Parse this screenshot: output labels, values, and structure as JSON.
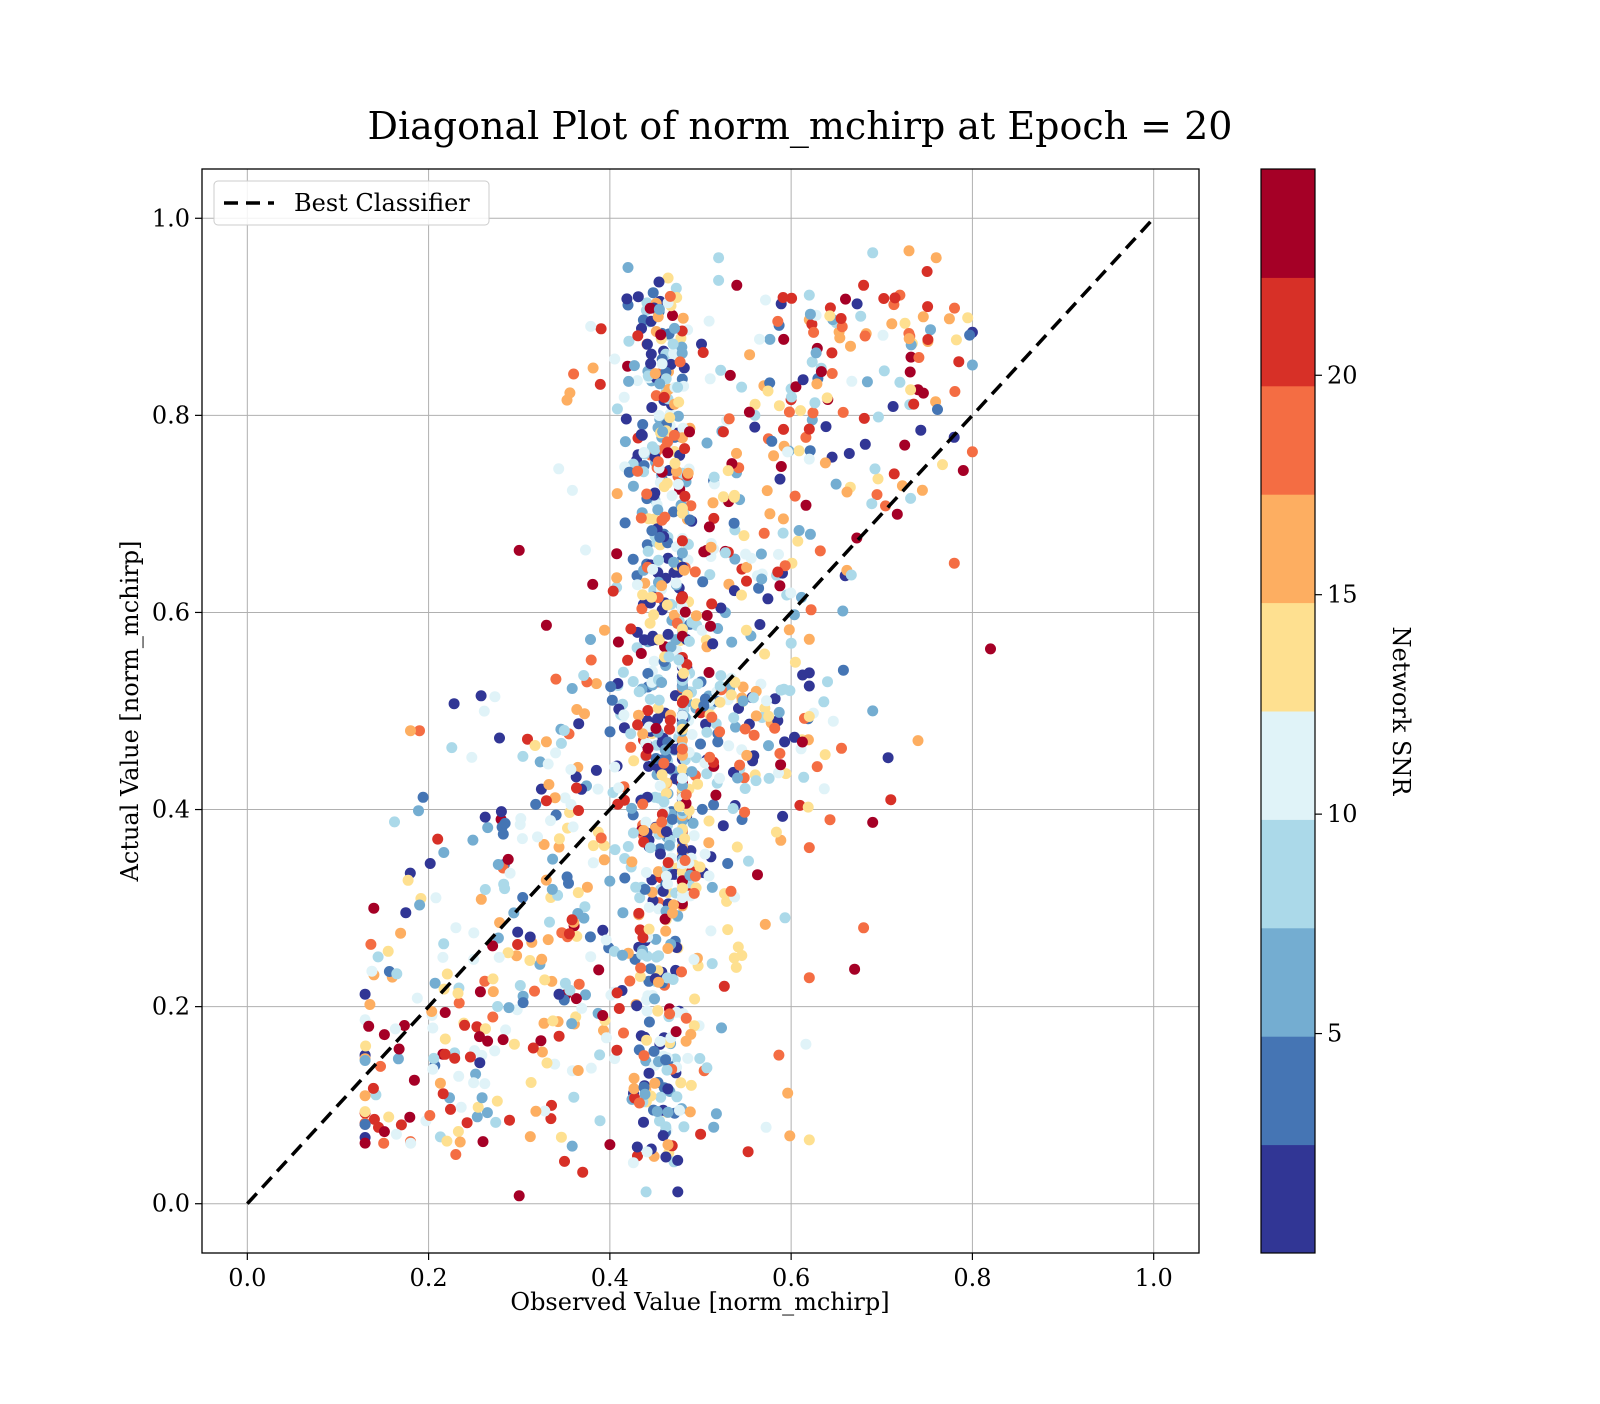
{
  "chart_data": {
    "type": "scatter",
    "title": "Diagonal Plot of norm_mchirp at Epoch = 20",
    "xlabel": "Observed Value [norm_mchirp]",
    "ylabel": "Actual Value [norm_mchirp]",
    "xlim": [
      -0.05,
      1.05
    ],
    "ylim": [
      -0.05,
      1.05
    ],
    "xticks": [
      "0.0",
      "0.2",
      "0.4",
      "0.6",
      "0.8",
      "1.0"
    ],
    "yticks": [
      "0.0",
      "0.2",
      "0.4",
      "0.6",
      "0.8",
      "1.0"
    ],
    "grid": true,
    "legend": {
      "position": "top-left",
      "entries": [
        {
          "label": "Best Classifier",
          "style": "dashed black line"
        }
      ]
    },
    "reference_line": {
      "label": "Best Classifier",
      "x": [
        0.0,
        1.0
      ],
      "y": [
        0.0,
        1.0
      ],
      "color": "#000000"
    },
    "colorbar": {
      "label": "Network SNR",
      "range": [
        0.0,
        24.7
      ],
      "ticks": [
        "5",
        "10",
        "15",
        "20"
      ],
      "colors": [
        "#313695",
        "#4575b4",
        "#74add1",
        "#abd9e9",
        "#e0f3f8",
        "#fee090",
        "#fdae61",
        "#f46d43",
        "#d73027",
        "#a50026"
      ]
    },
    "points_note": "approximate scatter of ~1500 predictions; each point is [observed, actual, network_snr]",
    "points": [
      [
        0.82,
        0.563,
        22.5
      ],
      [
        0.3,
        0.663,
        23.0
      ],
      [
        0.36,
        0.842,
        18.5
      ],
      [
        0.19,
        0.48,
        18.0
      ],
      [
        0.18,
        0.48,
        16.5
      ],
      [
        0.42,
        0.95,
        5.0
      ],
      [
        0.42,
        0.912,
        4.0
      ],
      [
        0.54,
        0.932,
        23.0
      ],
      [
        0.75,
        0.946,
        22.0
      ],
      [
        0.76,
        0.96,
        17.0
      ],
      [
        0.69,
        0.965,
        9.0
      ],
      [
        0.73,
        0.967,
        16.0
      ],
      [
        0.52,
        0.96,
        9.0
      ],
      [
        0.52,
        0.937,
        8.0
      ],
      [
        0.3,
        0.008,
        23.0
      ],
      [
        0.475,
        0.012,
        2.0
      ],
      [
        0.44,
        0.012,
        9.0
      ],
      [
        0.13,
        0.092,
        21.0
      ],
      [
        0.17,
        0.08,
        21.0
      ],
      [
        0.18,
        0.063,
        19.0
      ],
      [
        0.23,
        0.05,
        18.0
      ],
      [
        0.26,
        0.063,
        23.0
      ],
      [
        0.37,
        0.032,
        22.0
      ],
      [
        0.35,
        0.043,
        21.0
      ],
      [
        0.4,
        0.06,
        23.0
      ],
      [
        0.67,
        0.238,
        23.0
      ],
      [
        0.68,
        0.28,
        18.0
      ],
      [
        0.74,
        0.47,
        16.0
      ],
      [
        0.71,
        0.41,
        22.0
      ],
      [
        0.69,
        0.387,
        23.0
      ],
      [
        0.78,
        0.65,
        18.0
      ],
      [
        0.8,
        0.763,
        19.0
      ],
      [
        0.79,
        0.744,
        23.0
      ],
      [
        0.74,
        0.826,
        23.0
      ],
      [
        0.62,
        0.922,
        9.0
      ],
      [
        0.68,
        0.932,
        22.0
      ],
      [
        0.66,
        0.918,
        23.0
      ],
      [
        0.72,
        0.922,
        18.0
      ],
      [
        0.6,
        0.816,
        22.0
      ],
      [
        0.57,
        0.83,
        17.0
      ],
      [
        0.56,
        0.8,
        9.0
      ],
      [
        0.33,
        0.587,
        23.0
      ],
      [
        0.28,
        0.39,
        23.0
      ],
      [
        0.21,
        0.37,
        22.0
      ],
      [
        0.16,
        0.23,
        15.0
      ]
    ]
  }
}
